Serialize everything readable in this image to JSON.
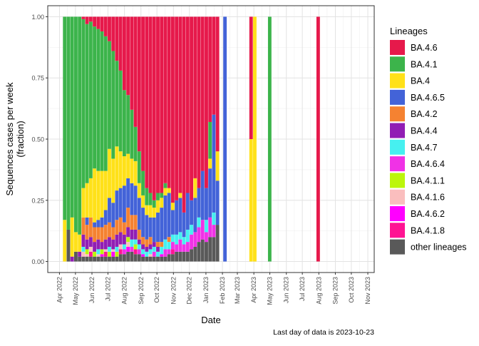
{
  "chart_data": {
    "type": "bar",
    "subtype": "stacked-proportion",
    "title": "",
    "xlabel": "Date",
    "ylabel_line1": "Sequences cases per week",
    "ylabel_line2": "(fraction)",
    "caption": "Last day of data is 2023-10-23",
    "legend_title": "Lineages",
    "legend_position": "right",
    "grid": true,
    "x_range": [
      "2022-03-10",
      "2023-11-13"
    ],
    "ylim": [
      -0.045,
      1.045
    ],
    "y_ticks": [
      0,
      0.25,
      0.5,
      0.75,
      1
    ],
    "y_tick_labels": [
      "0.00",
      "0.25",
      "0.50",
      "0.75",
      "1.00"
    ],
    "x_ticks": [
      {
        "date": "2022-04-01",
        "label": "Apr 2022"
      },
      {
        "date": "2022-05-01",
        "label": "May 2022"
      },
      {
        "date": "2022-06-01",
        "label": "Jun 2022"
      },
      {
        "date": "2022-07-01",
        "label": "Jul 2022"
      },
      {
        "date": "2022-08-01",
        "label": "Aug 2022"
      },
      {
        "date": "2022-09-01",
        "label": "Sep 2022"
      },
      {
        "date": "2022-10-01",
        "label": "Oct 2022"
      },
      {
        "date": "2022-11-01",
        "label": "Nov 2022"
      },
      {
        "date": "2022-12-01",
        "label": "Dec 2022"
      },
      {
        "date": "2023-01-01",
        "label": "Jan 2023"
      },
      {
        "date": "2023-02-01",
        "label": "Feb 2023"
      },
      {
        "date": "2023-03-01",
        "label": "Mar 2023"
      },
      {
        "date": "2023-04-01",
        "label": "Apr 2023"
      },
      {
        "date": "2023-05-01",
        "label": "May 2023"
      },
      {
        "date": "2023-06-01",
        "label": "Jun 2023"
      },
      {
        "date": "2023-07-01",
        "label": "Jul 2023"
      },
      {
        "date": "2023-08-01",
        "label": "Aug 2023"
      },
      {
        "date": "2023-09-01",
        "label": "Sep 2023"
      },
      {
        "date": "2023-10-01",
        "label": "Oct 2023"
      },
      {
        "date": "2023-11-01",
        "label": "Nov 2023"
      }
    ],
    "series": [
      {
        "name": "BA.4.6",
        "color": "#e6194b"
      },
      {
        "name": "BA.4.1",
        "color": "#3cb44b"
      },
      {
        "name": "BA.4",
        "color": "#ffe119"
      },
      {
        "name": "BA.4.6.5",
        "color": "#4363d8"
      },
      {
        "name": "BA.4.2",
        "color": "#f58231"
      },
      {
        "name": "BA.4.4",
        "color": "#911eb4"
      },
      {
        "name": "BA.4.7",
        "color": "#46f0f0"
      },
      {
        "name": "BA.4.6.4",
        "color": "#f032e6"
      },
      {
        "name": "BA.4.1.1",
        "color": "#bcf60c"
      },
      {
        "name": "BA.4.1.6",
        "color": "#fabebe"
      },
      {
        "name": "BA.4.6.2",
        "color": "#ff00ff"
      },
      {
        "name": "BA.4.1.8",
        "color": "#ff1493"
      },
      {
        "name": "other lineages",
        "color": "#595959"
      }
    ],
    "weeks": [
      {
        "date": "2022-04-11",
        "v": {
          "BA.4.1": 0.83,
          "BA.4": 0.17
        }
      },
      {
        "date": "2022-04-18",
        "v": {
          "BA.4.1": 0.87,
          "other lineages": 0.13
        }
      },
      {
        "date": "2022-04-25",
        "v": {
          "BA.4.1": 0.82,
          "BA.4": 0.16,
          "BA.4.4": 0.02
        }
      },
      {
        "date": "2022-05-02",
        "v": {
          "BA.4.1": 0.88,
          "BA.4": 0.08,
          "other lineages": 0.04
        }
      },
      {
        "date": "2022-05-09",
        "v": {
          "BA.4.1": 0.89,
          "BA.4": 0.07,
          "BA.4.4": 0.02,
          "other lineages": 0.02
        }
      },
      {
        "date": "2022-05-16",
        "v": {
          "BA.4.6": 0.01,
          "BA.4.1": 0.69,
          "BA.4": 0.12,
          "BA.4.2": 0.07,
          "BA.4.4": 0.05,
          "BA.4.7": 0.02,
          "BA.4.1.6": 0.02,
          "other lineages": 0.02
        }
      },
      {
        "date": "2022-05-23",
        "v": {
          "BA.4.6": 0.03,
          "BA.4.1": 0.65,
          "BA.4": 0.14,
          "BA.4.6.5": 0.03,
          "BA.4.2": 0.06,
          "BA.4.4": 0.04,
          "BA.4.1.1": 0.02,
          "BA.4.1.6": 0.01,
          "other lineages": 0.02
        }
      },
      {
        "date": "2022-05-30",
        "v": {
          "BA.4.6": 0.02,
          "BA.4.1": 0.64,
          "BA.4": 0.16,
          "BA.4.2": 0.08,
          "BA.4.4": 0.04,
          "BA.4.1.6": 0.02,
          "BA.4.1.8": 0.02,
          "other lineages": 0.02
        }
      },
      {
        "date": "2022-06-06",
        "v": {
          "BA.4.6": 0.04,
          "BA.4.1": 0.58,
          "BA.4": 0.22,
          "BA.4.6.5": 0.02,
          "BA.4.2": 0.06,
          "BA.4.4": 0.04,
          "BA.4.1.1": 0.02,
          "other lineages": 0.02
        }
      },
      {
        "date": "2022-06-13",
        "v": {
          "BA.4.6": 0.05,
          "BA.4.1": 0.58,
          "BA.4": 0.2,
          "BA.4.6.5": 0.03,
          "BA.4.2": 0.05,
          "BA.4.4": 0.04,
          "BA.4.7": 0.02,
          "BA.4.1.6": 0.01,
          "other lineages": 0.02
        }
      },
      {
        "date": "2022-06-20",
        "v": {
          "BA.4.6": 0.06,
          "BA.4.1": 0.57,
          "BA.4": 0.19,
          "BA.4.6.5": 0.04,
          "BA.4.2": 0.06,
          "BA.4.4": 0.03,
          "BA.4.1.1": 0.02,
          "BA.4.6.2": 0.01,
          "other lineages": 0.02
        }
      },
      {
        "date": "2022-06-27",
        "v": {
          "BA.4.6": 0.08,
          "BA.4.1": 0.55,
          "BA.4": 0.16,
          "BA.4.6.5": 0.06,
          "BA.4.2": 0.06,
          "BA.4.4": 0.04,
          "BA.4.1.6": 0.01,
          "BA.4.1.8": 0.02,
          "other lineages": 0.02
        }
      },
      {
        "date": "2022-07-04",
        "v": {
          "BA.4.6": 0.1,
          "BA.4.1": 0.44,
          "BA.4": 0.2,
          "BA.4.6.5": 0.1,
          "BA.4.2": 0.06,
          "BA.4.4": 0.04,
          "BA.4.7": 0.02,
          "BA.4.1.1": 0.02,
          "other lineages": 0.02
        }
      },
      {
        "date": "2022-07-11",
        "v": {
          "BA.4.6": 0.14,
          "BA.4.1": 0.44,
          "BA.4": 0.18,
          "BA.4.6.5": 0.1,
          "BA.4.2": 0.05,
          "BA.4.4": 0.04,
          "BA.4.1.6": 0.01,
          "BA.4.6.2": 0.02,
          "other lineages": 0.02
        }
      },
      {
        "date": "2022-07-18",
        "v": {
          "BA.4.6": 0.18,
          "BA.4.1": 0.35,
          "BA.4": 0.18,
          "BA.4.6.5": 0.12,
          "BA.4.2": 0.06,
          "BA.4.4": 0.05,
          "BA.4.7": 0.02,
          "BA.4.1.1": 0.02,
          "other lineages": 0.02
        }
      },
      {
        "date": "2022-07-25",
        "v": {
          "BA.4.6": 0.22,
          "BA.4.1": 0.33,
          "BA.4": 0.15,
          "BA.4.6.5": 0.12,
          "BA.4.2": 0.06,
          "BA.4.4": 0.05,
          "BA.4.1.6": 0.02,
          "BA.4.1.8": 0.02,
          "other lineages": 0.03
        }
      },
      {
        "date": "2022-08-01",
        "v": {
          "BA.4.6": 0.3,
          "BA.4.1": 0.27,
          "BA.4": 0.12,
          "BA.4.6.5": 0.15,
          "BA.4.2": 0.05,
          "BA.4.4": 0.04,
          "BA.4.7": 0.02,
          "BA.4.6.4": 0.02,
          "other lineages": 0.03
        }
      },
      {
        "date": "2022-08-08",
        "v": {
          "BA.4.6": 0.32,
          "BA.4.1": 0.24,
          "BA.4": 0.1,
          "BA.4.6.5": 0.12,
          "BA.4.2": 0.08,
          "BA.4.4": 0.04,
          "BA.4.1.1": 0.02,
          "BA.4.1.6": 0.02,
          "BA.4.6.2": 0.02,
          "other lineages": 0.04
        }
      },
      {
        "date": "2022-08-15",
        "v": {
          "BA.4.6": 0.38,
          "BA.4.1": 0.2,
          "BA.4": 0.1,
          "BA.4.6.5": 0.13,
          "BA.4.2": 0.06,
          "BA.4.4": 0.04,
          "BA.4.7": 0.03,
          "BA.4.6.4": 0.02,
          "other lineages": 0.04
        }
      },
      {
        "date": "2022-08-22",
        "v": {
          "BA.4.6": 0.45,
          "BA.4.1": 0.14,
          "BA.4": 0.1,
          "BA.4.6.5": 0.12,
          "BA.4.2": 0.06,
          "BA.4.4": 0.04,
          "BA.4.7": 0.02,
          "BA.4.1.1": 0.02,
          "BA.4.1.8": 0.02,
          "other lineages": 0.03
        }
      },
      {
        "date": "2022-08-29",
        "v": {
          "BA.4.6": 0.55,
          "BA.4.1": 0.13,
          "BA.4": 0.06,
          "BA.4.6.5": 0.13,
          "BA.4.2": 0.04,
          "BA.4.4": 0.02,
          "BA.4.7": 0.02,
          "BA.4.6.4": 0.02,
          "other lineages": 0.03
        }
      },
      {
        "date": "2022-09-05",
        "v": {
          "BA.4.6": 0.63,
          "BA.4.1": 0.1,
          "BA.4": 0.05,
          "BA.4.6.5": 0.12,
          "BA.4.2": 0.03,
          "BA.4.4": 0.02,
          "BA.4.7": 0.02,
          "BA.4.6.2": 0.01,
          "other lineages": 0.02
        }
      },
      {
        "date": "2022-09-12",
        "v": {
          "BA.4.6": 0.7,
          "BA.4.1": 0.07,
          "BA.4": 0.04,
          "BA.4.6.5": 0.1,
          "BA.4.2": 0.03,
          "BA.4.4": 0.02,
          "BA.4.7": 0.02,
          "other lineages": 0.02
        }
      },
      {
        "date": "2022-09-19",
        "v": {
          "BA.4.6": 0.72,
          "BA.4.1": 0.05,
          "BA.4": 0.05,
          "BA.4.6.5": 0.08,
          "BA.4.2": 0.03,
          "BA.4.4": 0.02,
          "BA.4.7": 0.02,
          "BA.4.1.6": 0.01,
          "other lineages": 0.02
        }
      },
      {
        "date": "2022-09-26",
        "v": {
          "BA.4.6": 0.75,
          "BA.4.1": 0.03,
          "BA.4": 0.04,
          "BA.4.6.5": 0.1,
          "BA.4.4": 0.02,
          "BA.4.7": 0.02,
          "BA.4.6.4": 0.02,
          "other lineages": 0.02
        }
      },
      {
        "date": "2022-10-03",
        "v": {
          "BA.4.6": 0.72,
          "BA.4.1": 0.03,
          "BA.4": 0.05,
          "BA.4.6.5": 0.12,
          "BA.4.2": 0.02,
          "BA.4.4": 0.02,
          "BA.4.7": 0.02,
          "other lineages": 0.02
        }
      },
      {
        "date": "2022-10-10",
        "v": {
          "BA.4.6": 0.72,
          "BA.4.1": 0.02,
          "BA.4": 0.04,
          "BA.4.6.5": 0.14,
          "BA.4.2": 0.02,
          "BA.4.7": 0.03,
          "BA.4.6.2": 0.01,
          "other lineages": 0.02
        }
      },
      {
        "date": "2022-10-17",
        "v": {
          "BA.4.6": 0.68,
          "BA.4.1": 0.02,
          "BA.4": 0.03,
          "BA.4.6.5": 0.18,
          "BA.4.7": 0.04,
          "BA.4.6.4": 0.03,
          "other lineages": 0.02
        }
      },
      {
        "date": "2022-10-24",
        "v": {
          "BA.4.6": 0.7,
          "BA.4": 0.02,
          "BA.4.6.5": 0.18,
          "BA.4.2": 0.02,
          "BA.4.7": 0.03,
          "BA.4.6.4": 0.02,
          "other lineages": 0.03
        }
      },
      {
        "date": "2022-10-31",
        "v": {
          "BA.4.6": 0.76,
          "BA.4": 0.03,
          "BA.4.6.5": 0.1,
          "BA.4.7": 0.03,
          "BA.4.6.4": 0.03,
          "BA.4.1.8": 0.02,
          "other lineages": 0.03
        }
      },
      {
        "date": "2022-11-07",
        "v": {
          "BA.4.6": 0.75,
          "BA.4.6.5": 0.14,
          "BA.4.7": 0.04,
          "BA.4.6.4": 0.03,
          "other lineages": 0.04
        }
      },
      {
        "date": "2022-11-14",
        "v": {
          "BA.4.6": 0.72,
          "BA.4": 0.02,
          "BA.4.6.5": 0.14,
          "BA.4.7": 0.03,
          "BA.4.6.4": 0.05,
          "other lineages": 0.04
        }
      },
      {
        "date": "2022-11-21",
        "v": {
          "BA.4.6": 0.8,
          "BA.4.6.5": 0.1,
          "BA.4.7": 0.03,
          "BA.4.6.4": 0.03,
          "other lineages": 0.04
        }
      },
      {
        "date": "2022-11-28",
        "v": {
          "BA.4.6": 0.72,
          "BA.4.6.5": 0.15,
          "BA.4.7": 0.05,
          "BA.4.6.4": 0.04,
          "other lineages": 0.04
        }
      },
      {
        "date": "2022-12-05",
        "v": {
          "BA.4.6": 0.75,
          "BA.4.6.5": 0.1,
          "BA.4.7": 0.04,
          "BA.4.6.4": 0.06,
          "other lineages": 0.05
        }
      },
      {
        "date": "2022-12-12",
        "v": {
          "BA.4.6": 0.66,
          "BA.4": 0.08,
          "BA.4.6.5": 0.14,
          "BA.4.6.4": 0.06,
          "other lineages": 0.06
        }
      },
      {
        "date": "2022-12-19",
        "v": {
          "BA.4.6": 0.7,
          "BA.4.6.5": 0.12,
          "BA.4.7": 0.04,
          "BA.4.6.4": 0.06,
          "other lineages": 0.08
        }
      },
      {
        "date": "2022-12-26",
        "v": {
          "BA.4.6": 0.63,
          "BA.4.6.5": 0.2,
          "BA.4.6.4": 0.08,
          "other lineages": 0.09
        }
      },
      {
        "date": "2023-01-02",
        "v": {
          "BA.4.6": 0.7,
          "BA.4.6.5": 0.13,
          "BA.4.7": 0.05,
          "BA.4.6.4": 0.04,
          "other lineages": 0.08
        }
      },
      {
        "date": "2023-01-09",
        "v": {
          "BA.4.6": 0.43,
          "BA.4.1": 0.15,
          "BA.4": 0.04,
          "BA.4.6.5": 0.2,
          "BA.4.6.4": 0.08,
          "other lineages": 0.1
        }
      },
      {
        "date": "2023-01-16",
        "v": {
          "BA.4.6": 0.4,
          "BA.4.6.5": 0.4,
          "BA.4.7": 0.05,
          "BA.4.6.4": 0.05,
          "other lineages": 0.1
        }
      },
      {
        "date": "2023-01-23",
        "v": {
          "BA.4.6": 0.55,
          "BA.4": 0.12,
          "BA.4.6.5": 0.18,
          "other lineages": 0.15
        }
      },
      {
        "date": "2023-02-06",
        "v": {
          "BA.4.6.5": 1.0
        }
      },
      {
        "date": "2023-03-27",
        "v": {
          "BA.4.6": 0.5,
          "BA.4": 0.5
        }
      },
      {
        "date": "2023-04-03",
        "v": {
          "BA.4": 1.0
        }
      },
      {
        "date": "2023-05-01",
        "v": {
          "BA.4.1": 1.0
        }
      },
      {
        "date": "2023-07-31",
        "v": {
          "BA.4.6": 1.0
        }
      }
    ]
  }
}
